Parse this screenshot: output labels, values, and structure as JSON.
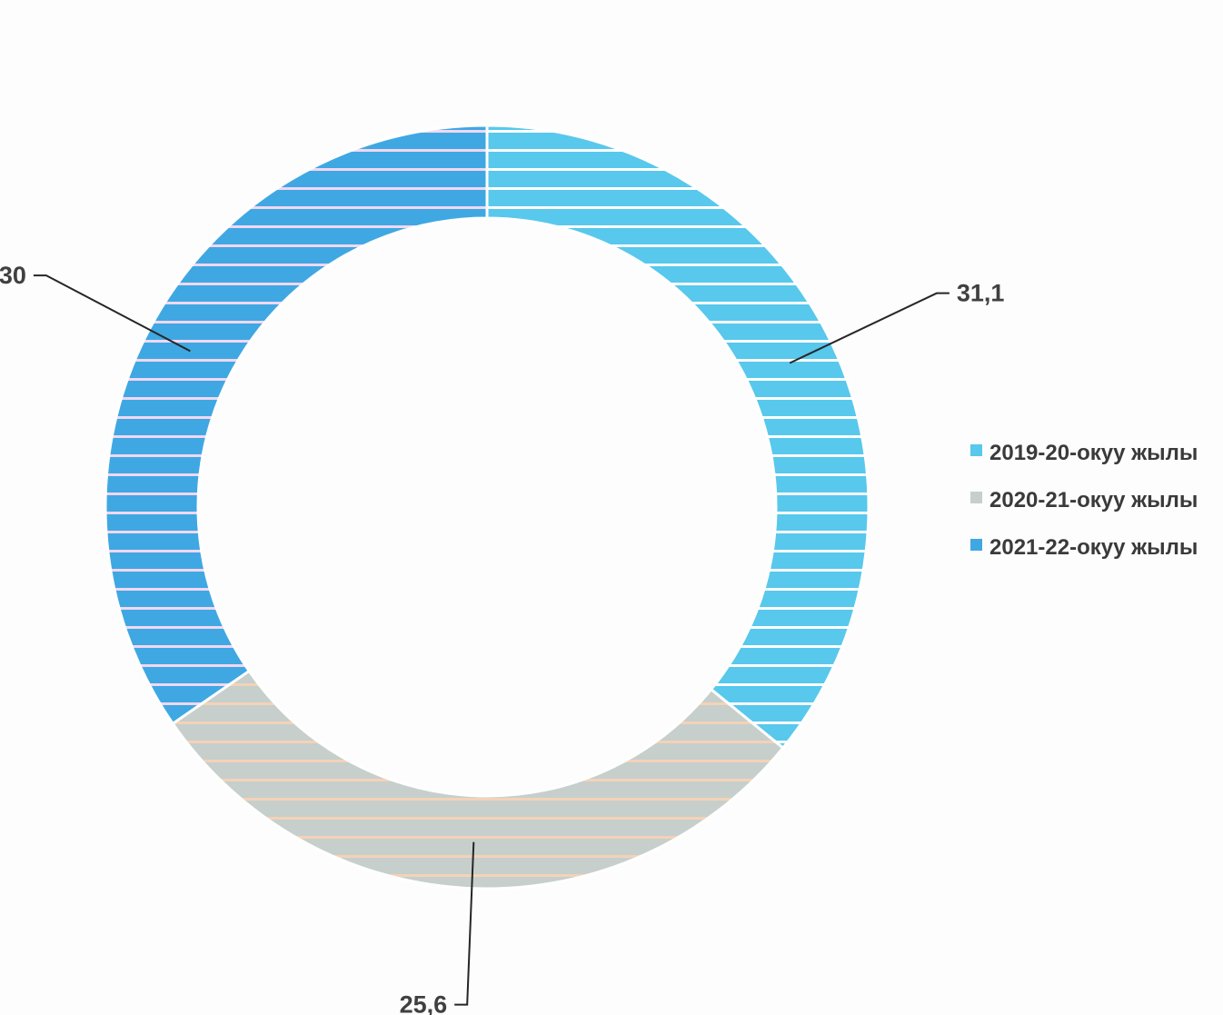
{
  "chart_data": {
    "type": "pie",
    "style": "doughnut",
    "title": "",
    "categories": [
      "2019-20-окуу жылы",
      "2020-21-окуу жылы",
      "2021-22-окуу жылы"
    ],
    "values": [
      31.1,
      25.6,
      30
    ],
    "value_labels": [
      "31,1",
      "25,6",
      "30"
    ],
    "colors": [
      "#58c8ec",
      "#c6cfcc",
      "#3fa8e2"
    ],
    "stripe_colors": [
      "#ffffff",
      "#f4d2b8",
      "#f2d7f2"
    ],
    "legend": {
      "position": "right",
      "items": [
        "2019-20-окуу жылы",
        "2020-21-окуу жылы",
        "2021-22-окуу жылы"
      ]
    }
  }
}
